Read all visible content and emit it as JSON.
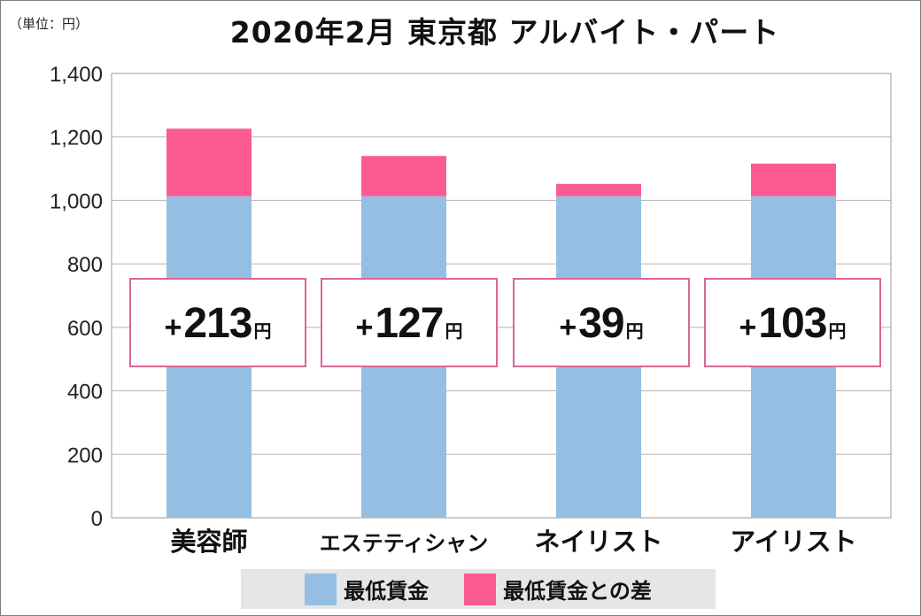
{
  "chart_data": {
    "type": "bar",
    "stacked": true,
    "title": "2020年2月 東京都 アルバイト・パート",
    "unit_label": "（単位：円）",
    "categories": [
      "美容師",
      "エステティシャン",
      "ネイリスト",
      "アイリスト"
    ],
    "series": [
      {
        "name": "最低賃金",
        "values": [
          1013,
          1013,
          1013,
          1013
        ],
        "color": "#95bfe2"
      },
      {
        "name": "最低賃金との差",
        "values": [
          213,
          127,
          39,
          103
        ],
        "color": "#fb5b92"
      }
    ],
    "annotations": [
      {
        "plus": "+",
        "value": "213",
        "unit": "円"
      },
      {
        "plus": "+",
        "value": "127",
        "unit": "円"
      },
      {
        "plus": "+",
        "value": "39",
        "unit": "円"
      },
      {
        "plus": "+",
        "value": "103",
        "unit": "円"
      }
    ],
    "ylim": [
      0,
      1400
    ],
    "yticks": [
      0,
      200,
      400,
      600,
      800,
      1000,
      1200,
      1400
    ],
    "ytick_labels": [
      "0",
      "200",
      "400",
      "600",
      "800",
      "1,000",
      "1,200",
      "1,400"
    ],
    "grid": true,
    "legend_position": "bottom"
  }
}
